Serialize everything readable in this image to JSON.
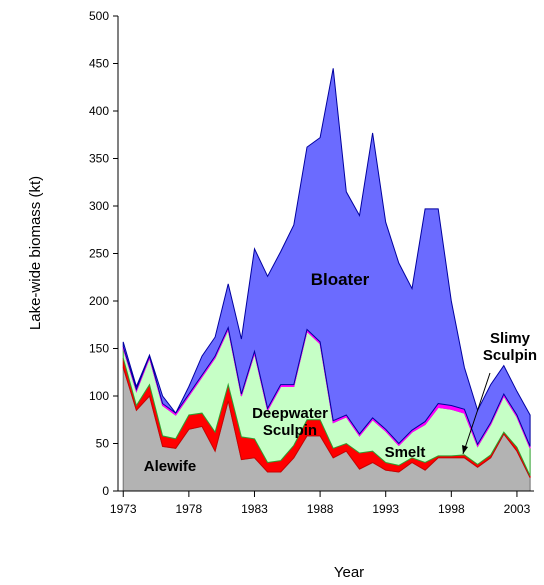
{
  "chart_data": {
    "type": "stacked_area",
    "x": [
      1973,
      1974,
      1975,
      1976,
      1977,
      1978,
      1979,
      1980,
      1981,
      1982,
      1983,
      1984,
      1985,
      1986,
      1987,
      1988,
      1989,
      1990,
      1991,
      1992,
      1993,
      1994,
      1995,
      1996,
      1997,
      1998,
      1999,
      2000,
      2001,
      2002,
      2003,
      2004
    ],
    "xlim": [
      1972.6,
      2004.3
    ],
    "xticks": [
      1973,
      1978,
      1983,
      1988,
      1993,
      1998,
      2003
    ],
    "ylim": [
      0,
      500
    ],
    "yticks": [
      0,
      50,
      100,
      150,
      200,
      250,
      300,
      350,
      400,
      450,
      500
    ],
    "x_label": "Year",
    "y_label": "Lake-wide biomass (kt)",
    "series": [
      {
        "name": "Alewife",
        "color": "#b3b3b3",
        "values": [
          130,
          85,
          100,
          47,
          45,
          65,
          68,
          42,
          95,
          33,
          35,
          20,
          20,
          35,
          58,
          58,
          35,
          42,
          23,
          30,
          22,
          20,
          30,
          22,
          35,
          35,
          35,
          25,
          35,
          60,
          42,
          14
        ]
      },
      {
        "name": "Smelt",
        "color": "#ff0000",
        "values": [
          10,
          5,
          12,
          11,
          10,
          15,
          14,
          20,
          17,
          24,
          20,
          10,
          12,
          13,
          17,
          17,
          10,
          8,
          17,
          12,
          8,
          7,
          5,
          8,
          2,
          2,
          3,
          3,
          3,
          2,
          4,
          2
        ]
      },
      {
        "name": "Deepwater Sculpin",
        "color": "#c6ffc6",
        "values": [
          10,
          15,
          28,
          32,
          25,
          20,
          38,
          78,
          58,
          43,
          90,
          55,
          78,
          62,
          93,
          80,
          27,
          28,
          18,
          33,
          33,
          21,
          27,
          40,
          51,
          49,
          44,
          19,
          32,
          38,
          32,
          29
        ]
      },
      {
        "name": "Slimy Sculpin",
        "color": "#ff00ff",
        "values": [
          2,
          2,
          2,
          2,
          2,
          2,
          2,
          2,
          2,
          2,
          2,
          2,
          2,
          2,
          2,
          2,
          2,
          2,
          2,
          2,
          2,
          2,
          2,
          3,
          4,
          4,
          4,
          2,
          2,
          2,
          2,
          2
        ]
      },
      {
        "name": "Bloater",
        "color": "#6b6bff",
        "values": [
          5,
          3,
          1,
          8,
          0,
          8,
          20,
          20,
          46,
          58,
          108,
          139,
          140,
          168,
          192,
          215,
          371,
          235,
          230,
          300,
          218,
          190,
          149,
          224,
          205,
          110,
          44,
          36,
          40,
          30,
          25,
          33
        ]
      }
    ]
  }
}
